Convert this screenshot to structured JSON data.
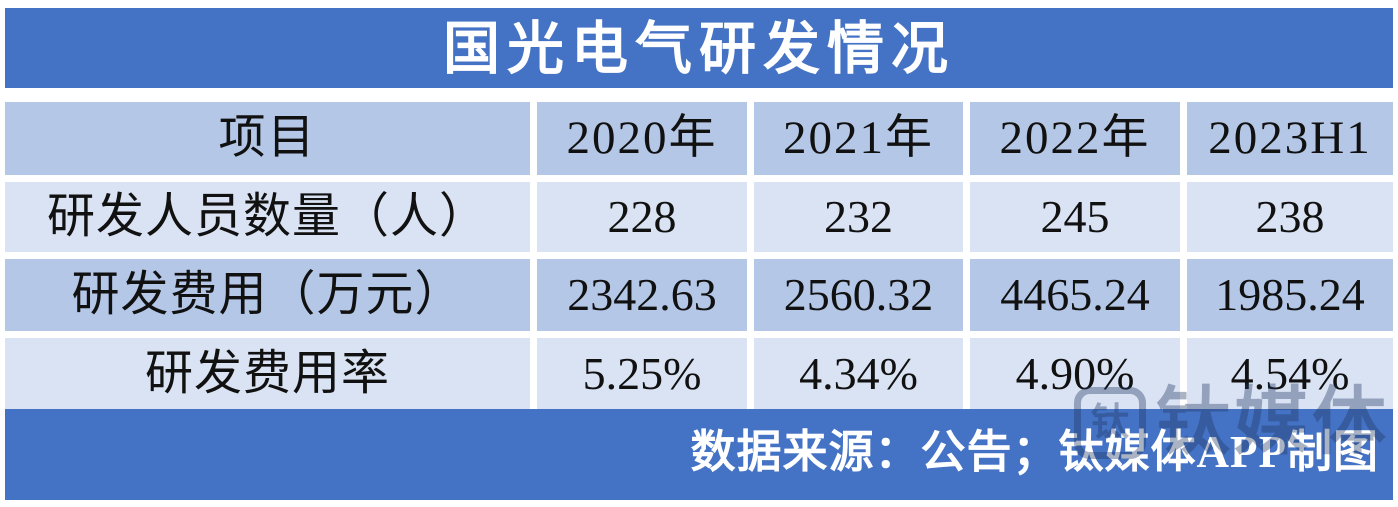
{
  "chart_data": {
    "type": "table",
    "title": "国光电气研发情况",
    "columns": [
      "项目",
      "2020年",
      "2021年",
      "2022年",
      "2023H1"
    ],
    "rows": [
      {
        "label": "研发人员数量（人）",
        "values": [
          "228",
          "232",
          "245",
          "238"
        ]
      },
      {
        "label": "研发费用（万元）",
        "values": [
          "2342.63",
          "2560.32",
          "4465.24",
          "1985.24"
        ]
      },
      {
        "label": "研发费用率",
        "values": [
          "5.25%",
          "4.34%",
          "4.90%",
          "4.54%"
        ]
      }
    ],
    "source_note": "数据来源：公告；钛媒体APP制图",
    "layout_hints": {
      "first_column_share": 0.38,
      "banding": [
        "medium",
        "light",
        "medium",
        "light"
      ],
      "grid": "white gaps between cells"
    }
  },
  "watermark": {
    "logo_glyph": "钛",
    "text": "钛媒体"
  },
  "colors": {
    "accent_blue": "#4472c4",
    "band_medium": "#b4c7e7",
    "band_light": "#dae3f3",
    "watermark_navy": "#1f3864",
    "text_black": "#111111",
    "text_white": "#ffffff"
  }
}
